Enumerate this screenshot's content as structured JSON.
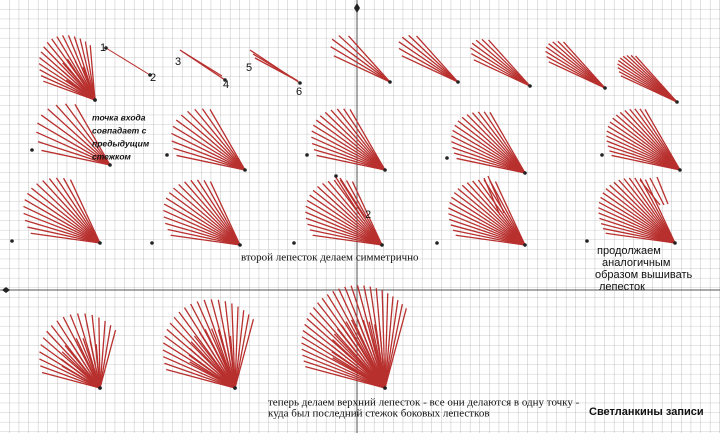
{
  "step_labels": [
    "1",
    "2",
    "3",
    "4",
    "5",
    "6"
  ],
  "note_entry": [
    "точка входа",
    "совпадает с",
    "предыдущим",
    "стежком"
  ],
  "step_label_row3": "2",
  "caption_second_petal": "второй лепесток делаем симметрично",
  "caption_continue": [
    "продолжаем",
    "аналогичным",
    "образом вышивать",
    "лепесток"
  ],
  "caption_top_petal": [
    "теперь делаем верхний лепесток - все они делаются в одну точку -",
    "куда был последний стежок  боковых лепестков"
  ],
  "signature": "Светланкины записи"
}
